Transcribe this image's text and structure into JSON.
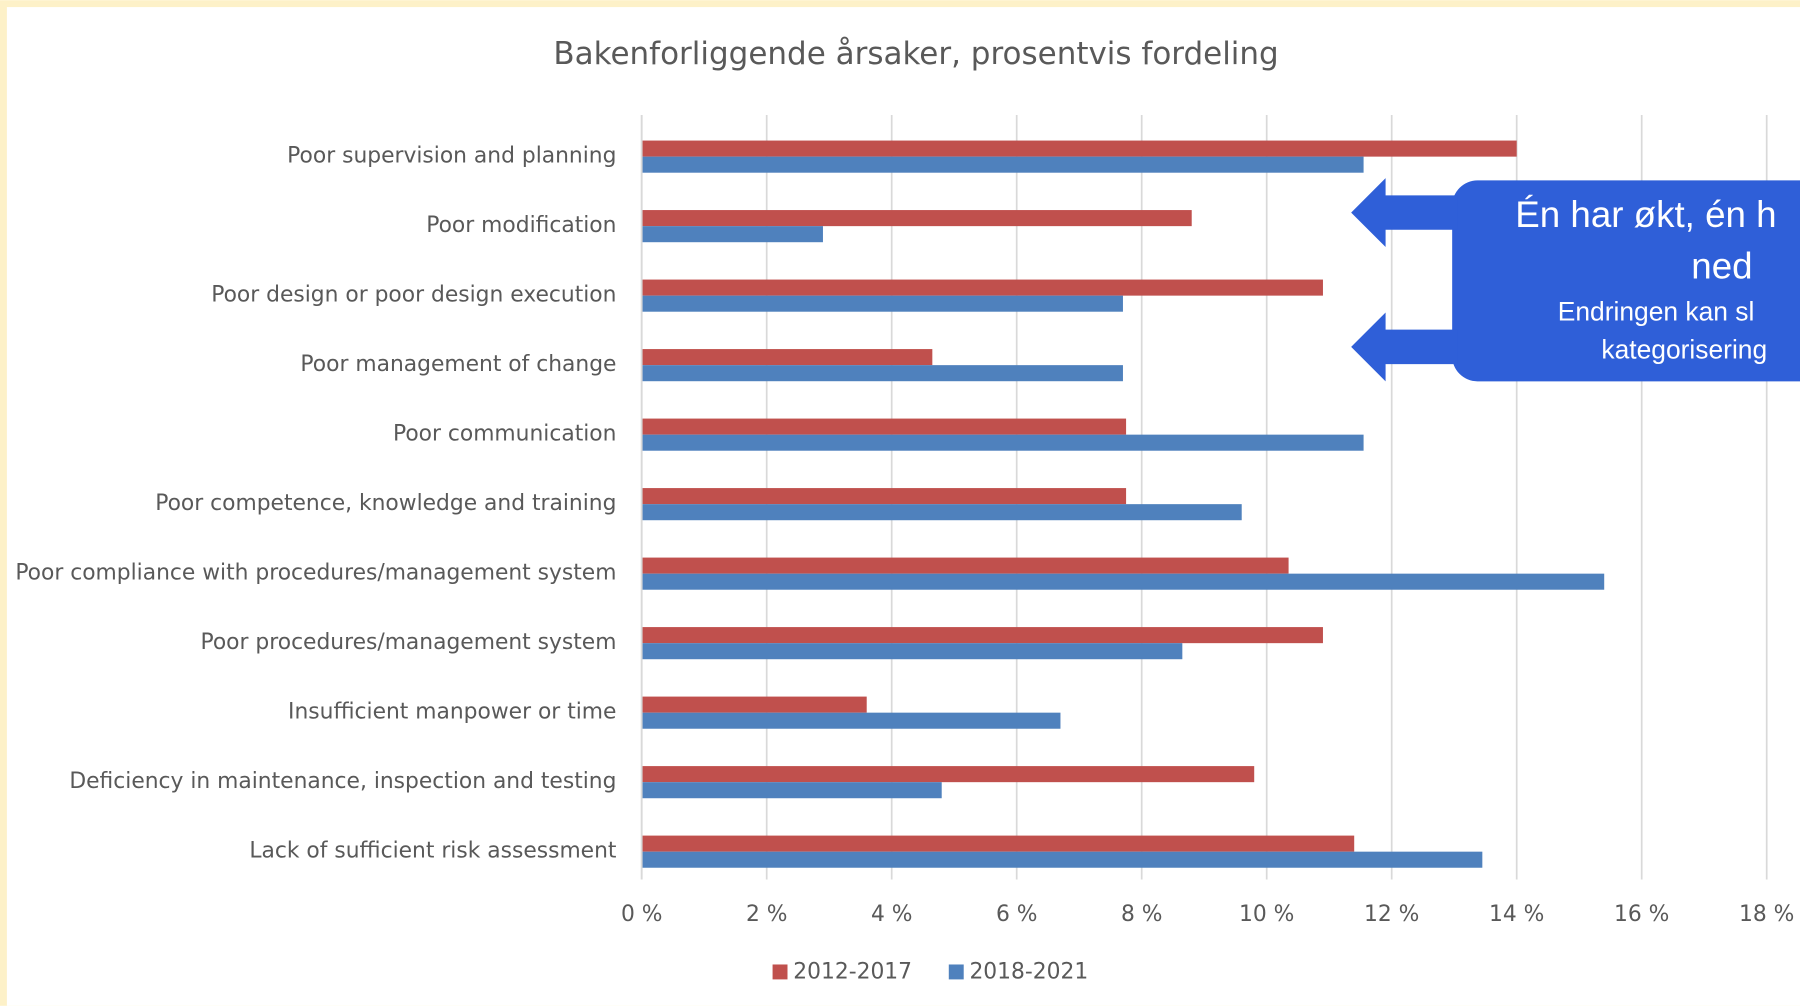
{
  "chart_data": {
    "type": "hbar",
    "title": "Bakenforliggende årsaker, prosentvis fordeling",
    "categories": [
      "Poor supervision and planning",
      "Poor modification",
      "Poor design or poor design execution",
      "Poor management of change",
      "Poor communication",
      "Poor competence, knowledge and training",
      "Poor compliance with procedures/management system",
      "Poor procedures/management system",
      "Insufficient manpower or time",
      "Deficiency in maintenance, inspection and testing",
      "Lack of sufficient risk assessment"
    ],
    "series": [
      {
        "name": "2012-2017",
        "color": "#c0504d",
        "values": [
          14.0,
          8.8,
          10.9,
          4.65,
          7.75,
          7.75,
          10.35,
          10.9,
          3.6,
          9.8,
          11.4
        ]
      },
      {
        "name": "2018-2021",
        "color": "#4f81bd",
        "values": [
          11.55,
          2.9,
          7.7,
          7.7,
          11.55,
          9.6,
          15.4,
          8.65,
          6.7,
          4.8,
          13.45
        ]
      }
    ],
    "xlim": [
      0,
      18
    ],
    "xticks": [
      {
        "value": 0,
        "label": "0 %"
      },
      {
        "value": 2,
        "label": "2 %"
      },
      {
        "value": 4,
        "label": "4 %"
      },
      {
        "value": 6,
        "label": "6 %"
      },
      {
        "value": 8,
        "label": "8 %"
      },
      {
        "value": 10,
        "label": "10 %"
      },
      {
        "value": 12,
        "label": "12 %"
      },
      {
        "value": 14,
        "label": "14 %"
      },
      {
        "value": 16,
        "label": "16 %"
      },
      {
        "value": 18,
        "label": "18 %"
      }
    ],
    "grid": true,
    "legend": "bottom",
    "annotations": [
      "Én har økt, én h",
      "ned",
      "Endringen kan sl",
      "kategorisering"
    ]
  }
}
